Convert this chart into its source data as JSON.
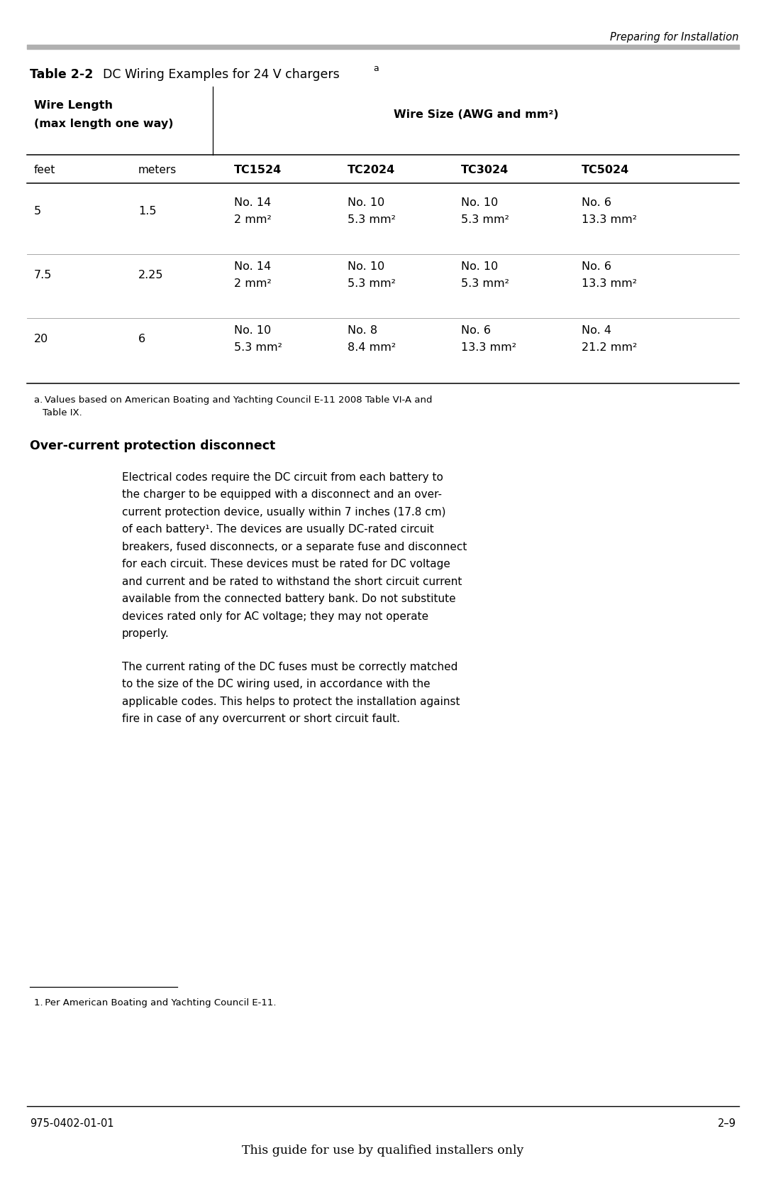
{
  "page_header": "Preparing for Installation",
  "table_title_bold": "Table 2-2",
  "table_title_rest": "  DC Wiring Examples for 24 V chargers",
  "table_title_superscript": "a",
  "col_header_left1": "Wire Length",
  "col_header_left2": "(max length one way)",
  "col_header_right": "Wire Size (AWG and mm²)",
  "subheaders_left": [
    "feet",
    "meters"
  ],
  "subheaders_right": [
    "TC1524",
    "TC2024",
    "TC3024",
    "TC5024"
  ],
  "rows": [
    {
      "feet": "5",
      "meters": "1.5",
      "tc1524": [
        "No. 14",
        "2 mm²"
      ],
      "tc2024": [
        "No. 10",
        "5.3 mm²"
      ],
      "tc3024": [
        "No. 10",
        "5.3 mm²"
      ],
      "tc5024": [
        "No. 6",
        "13.3 mm²"
      ]
    },
    {
      "feet": "7.5",
      "meters": "2.25",
      "tc1524": [
        "No. 14",
        "2 mm²"
      ],
      "tc2024": [
        "No. 10",
        "5.3 mm²"
      ],
      "tc3024": [
        "No. 10",
        "5.3 mm²"
      ],
      "tc5024": [
        "No. 6",
        "13.3 mm²"
      ]
    },
    {
      "feet": "20",
      "meters": "6",
      "tc1524": [
        "No. 10",
        "5.3 mm²"
      ],
      "tc2024": [
        "No. 8",
        "8.4 mm²"
      ],
      "tc3024": [
        "No. 6",
        "13.3 mm²"
      ],
      "tc5024": [
        "No. 4",
        "21.2 mm²"
      ]
    }
  ],
  "footnote_a_line1": "a. Values based on American Boating and Yachting Council E-11 2008 Table VI-A and",
  "footnote_a_line2": "   Table IX.",
  "section_heading": "Over-current protection disconnect",
  "paragraph1_lines": [
    "Electrical codes require the DC circuit from each battery to",
    "the charger to be equipped with a disconnect and an over-",
    "current protection device, usually within 7 inches (17.8 cm)",
    "of each battery¹. The devices are usually DC-rated circuit",
    "breakers, fused disconnects, or a separate fuse and disconnect",
    "for each circuit. These devices must be rated for DC voltage",
    "and current and be rated to withstand the short circuit current",
    "available from the connected battery bank. Do not substitute",
    "devices rated only for AC voltage; they may not operate",
    "properly."
  ],
  "paragraph2_lines": [
    "The current rating of the DC fuses must be correctly matched",
    "to the size of the DC wiring used, in accordance with the",
    "applicable codes. This helps to protect the installation against",
    "fire in case of any overcurrent or short circuit fault."
  ],
  "footnote2": "1. Per American Boating and Yachting Council E-11.",
  "footer_left": "975-0402-01-01",
  "footer_right": "2–9",
  "footer_center": "This guide for use by qualified installers only",
  "bg_color": "#ffffff",
  "text_color": "#000000",
  "gray_bar_color": "#b0b0b0"
}
